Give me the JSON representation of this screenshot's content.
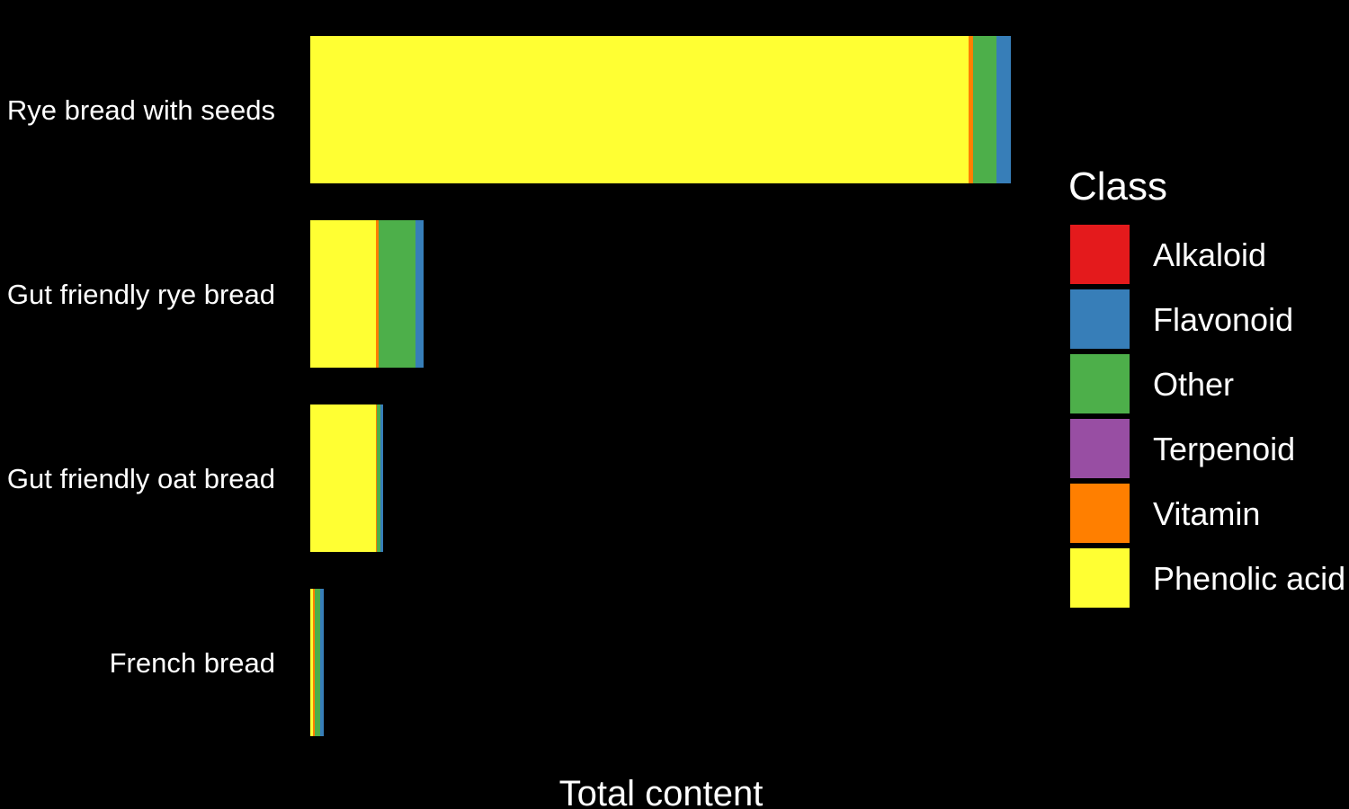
{
  "chart_data": {
    "type": "bar",
    "orientation": "horizontal",
    "stacked": true,
    "xlabel": "Total content",
    "ylabel": "",
    "categories": [
      "Rye bread with seeds",
      "Gut friendly rye bread",
      "Gut friendly oat bread",
      "French bread"
    ],
    "series": [
      {
        "name": "Alkaloid",
        "color": "#e41a1c",
        "values": [
          0,
          0,
          0,
          0
        ]
      },
      {
        "name": "Flavonoid",
        "color": "#377eb8",
        "values": [
          16,
          9,
          3,
          4
        ]
      },
      {
        "name": "Other",
        "color": "#4daf4a",
        "values": [
          26,
          41,
          4,
          6
        ]
      },
      {
        "name": "Terpenoid",
        "color": "#984ea3",
        "values": [
          0,
          0,
          0,
          0
        ]
      },
      {
        "name": "Vitamin",
        "color": "#ff7f00",
        "values": [
          5,
          3,
          1,
          2
        ]
      },
      {
        "name": "Phenolic acid",
        "color": "#ffff33",
        "values": [
          732,
          73,
          73,
          3
        ]
      }
    ],
    "stack_order": [
      "Phenolic acid",
      "Vitamin",
      "Terpenoid",
      "Other",
      "Flavonoid",
      "Alkaloid"
    ],
    "xlim": [
      0,
      779
    ],
    "grid": false,
    "ticks_shown": false,
    "legend": {
      "title": "Class",
      "placement": "right",
      "entries": [
        "Alkaloid",
        "Flavonoid",
        "Other",
        "Terpenoid",
        "Vitamin",
        "Phenolic acid"
      ]
    },
    "background": "#000000",
    "text_color": "#ffffff"
  }
}
